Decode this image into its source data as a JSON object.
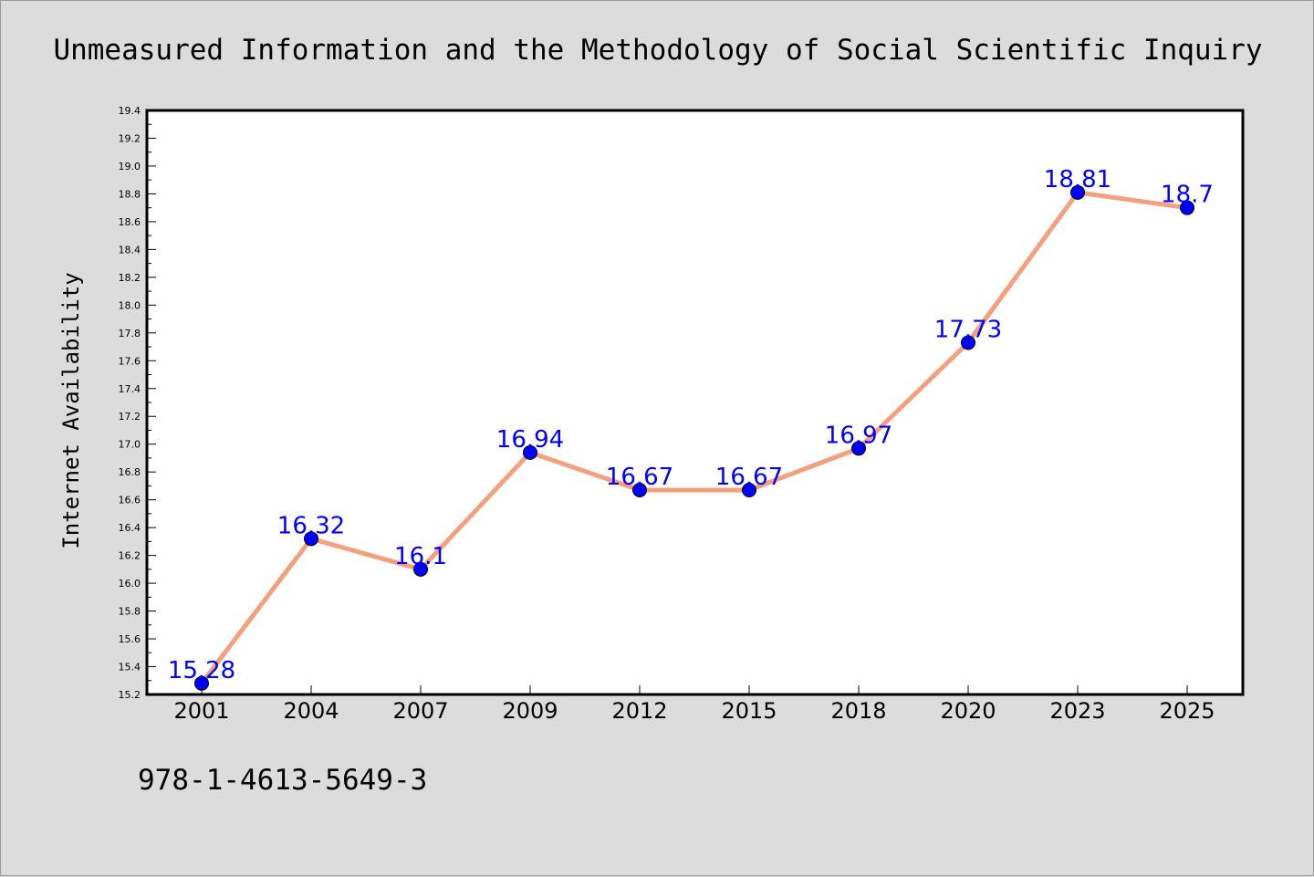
{
  "chart_data": {
    "type": "line",
    "title": "Unmeasured Information and the Methodology of Social Scientific Inquiry",
    "xlabel": "",
    "ylabel": "Internet Availability",
    "categories": [
      "2001",
      "2004",
      "2007",
      "2009",
      "2012",
      "2015",
      "2018",
      "2020",
      "2023",
      "2025"
    ],
    "series": [
      {
        "values": [
          15.28,
          16.32,
          16.1,
          16.94,
          16.67,
          16.67,
          16.97,
          17.73,
          18.81,
          18.7
        ],
        "data_labels": [
          "15.28",
          "16.32",
          "16.1",
          "16.94",
          "16.67",
          "16.67",
          "16.97",
          "17.73",
          "18.81",
          "18.7"
        ],
        "line_color": "#f4a07f",
        "marker_color": "#0000ff"
      }
    ],
    "ylim": [
      15.2,
      19.4
    ],
    "yticks": [
      "15.2",
      "15.4",
      "15.6",
      "15.8",
      "16.0",
      "16.2",
      "16.4",
      "16.6",
      "16.8",
      "17.0",
      "17.2",
      "17.4",
      "17.6",
      "17.8",
      "18.0",
      "18.2",
      "18.4",
      "18.6",
      "18.8",
      "19.0",
      "19.2",
      "19.4"
    ],
    "grid": false,
    "legend": "none"
  },
  "footer": {
    "isbn": "978-1-4613-5649-3"
  },
  "colors": {
    "background": "#dcdcdc",
    "plot_background": "#ffffff",
    "label_color": "#0000ff"
  }
}
